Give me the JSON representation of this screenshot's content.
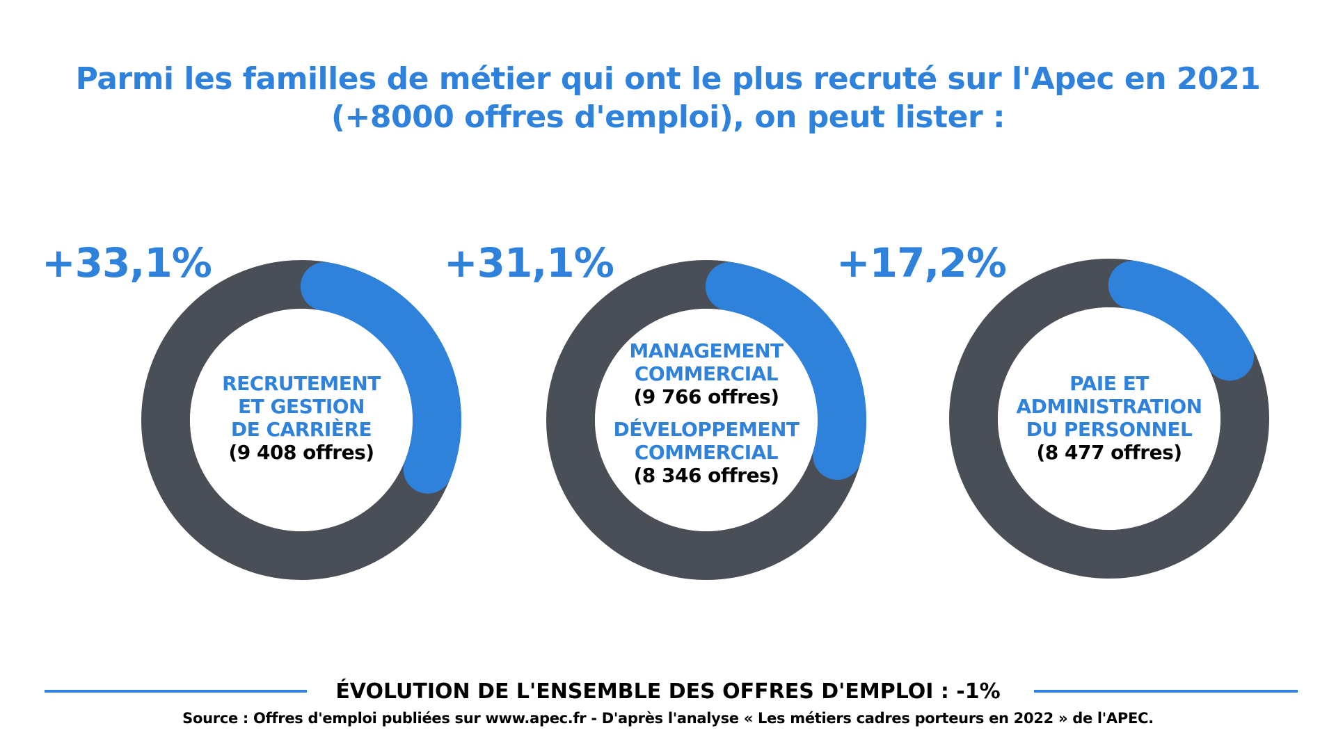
{
  "title": {
    "line1": "Parmi les familles de métier qui ont le plus recruté sur l'Apec en 2021",
    "line2": "(+8000 offres d'emploi), on peut lister :"
  },
  "colors": {
    "accent": "#2F82DB",
    "ring": "#4A4F57"
  },
  "chart_data": {
    "type": "donut",
    "items": [
      {
        "percent_label": "+33,1%",
        "value": 33.1,
        "lines": [
          "RECRUTEMENT",
          "ET GESTION",
          "DE CARRIÈRE"
        ],
        "count": "(9 408 offres)"
      },
      {
        "percent_label": "+31,1%",
        "value": 31.1,
        "lines": [
          "MANAGEMENT",
          "COMMERCIAL"
        ],
        "count": "(9 766 offres)",
        "lines2": [
          "DÉVELOPPEMENT",
          "COMMERCIAL"
        ],
        "count2": "(8 346 offres)"
      },
      {
        "percent_label": "+17,2%",
        "value": 17.2,
        "lines": [
          "PAIE ET",
          "ADMINISTRATION",
          "DU PERSONNEL"
        ],
        "count": "(8 477 offres)"
      }
    ]
  },
  "footer": {
    "heading": "ÉVOLUTION DE L'ENSEMBLE DES OFFRES D'EMPLOI : -1%",
    "source": "Source : Offres d'emploi publiées sur www.apec.fr - D'après l'analyse « Les métiers cadres porteurs en 2022 » de l'APEC."
  }
}
